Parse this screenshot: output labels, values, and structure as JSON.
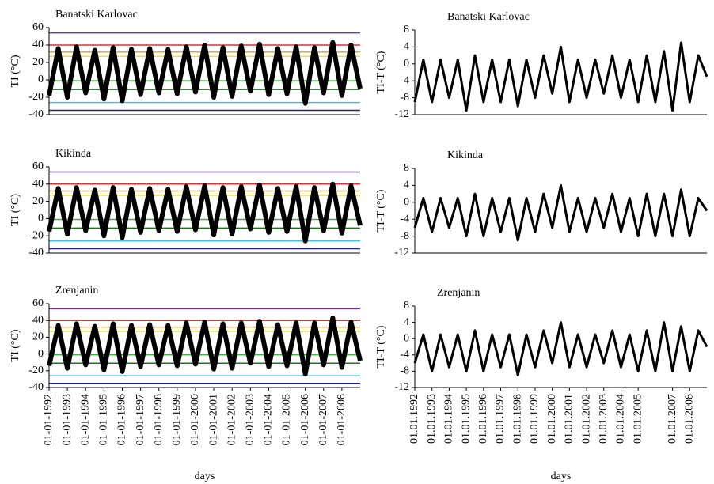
{
  "chart_data": [
    {
      "type": "line",
      "title": "Banatski Karlovac",
      "y_label": "TI (°C)",
      "x": [
        1992,
        1992.5,
        1993,
        1993.5,
        1994,
        1994.5,
        1995,
        1995.5,
        1996,
        1996.5,
        1997,
        1997.5,
        1998,
        1998.5,
        1999,
        1999.5,
        2000,
        2000.5,
        2001,
        2001.5,
        2002,
        2002.5,
        2003,
        2003.5,
        2004,
        2004.5,
        2005,
        2005.5,
        2006,
        2006.5,
        2007,
        2007.5,
        2008,
        2008.5,
        2009
      ],
      "series": [
        {
          "color": "#000000",
          "values": [
            -18,
            36,
            -20,
            38,
            -15,
            34,
            -22,
            37,
            -24,
            35,
            -17,
            36,
            -15,
            35,
            -16,
            38,
            -14,
            40,
            -20,
            37,
            -19,
            39,
            -13,
            41,
            -17,
            36,
            -16,
            38,
            -27,
            37,
            -15,
            43,
            -18,
            40,
            -10
          ]
        }
      ],
      "xlim": [
        1992,
        2009
      ],
      "ylim": [
        -40,
        60
      ],
      "yticks": [
        -40,
        -20,
        0,
        20,
        40,
        60
      ],
      "hlines": [
        {
          "value": 54,
          "color": "#7030a0"
        },
        {
          "value": 40,
          "color": "#e03030"
        },
        {
          "value": 32,
          "color": "#f0a030"
        },
        {
          "value": 27,
          "color": "#f0e040"
        },
        {
          "value": -1,
          "color": "#40b040"
        },
        {
          "value": -11,
          "color": "#207020"
        },
        {
          "value": -26,
          "color": "#40c0e0"
        },
        {
          "value": -35,
          "color": "#202080"
        }
      ]
    },
    {
      "type": "line",
      "title": "Banatski Karlovac",
      "y_label": "TI-T (°C)",
      "x": [
        1992,
        1992.5,
        1993,
        1993.5,
        1994,
        1994.5,
        1995,
        1995.5,
        1996,
        1996.5,
        1997,
        1997.5,
        1998,
        1998.5,
        1999,
        1999.5,
        2000,
        2000.5,
        2001,
        2001.5,
        2002,
        2002.5,
        2003,
        2003.5,
        2004,
        2004.5,
        2005,
        2005.5,
        2006,
        2006.5,
        2007,
        2007.5,
        2008,
        2008.5,
        2009
      ],
      "series": [
        {
          "color": "#000000",
          "values": [
            -9,
            1,
            -9,
            1,
            -8,
            1,
            -11,
            2,
            -9,
            1,
            -9,
            1,
            -10,
            1,
            -8,
            2,
            -7,
            4,
            -9,
            1,
            -8,
            1,
            -7,
            2,
            -8,
            1,
            -9,
            2,
            -9,
            3,
            -11,
            5,
            -9,
            2,
            -3
          ]
        }
      ],
      "xlim": [
        1992,
        2009
      ],
      "ylim": [
        -12,
        8
      ],
      "yticks": [
        -12,
        -8,
        -4,
        0,
        4,
        8
      ]
    },
    {
      "type": "line",
      "title": "Kikinda",
      "y_label": "TI (°C)",
      "x": [
        1992,
        1992.5,
        1993,
        1993.5,
        1994,
        1994.5,
        1995,
        1995.5,
        1996,
        1996.5,
        1997,
        1997.5,
        1998,
        1998.5,
        1999,
        1999.5,
        2000,
        2000.5,
        2001,
        2001.5,
        2002,
        2002.5,
        2003,
        2003.5,
        2004,
        2004.5,
        2005,
        2005.5,
        2006,
        2006.5,
        2007,
        2007.5,
        2008,
        2008.5,
        2009
      ],
      "series": [
        {
          "color": "#000000",
          "values": [
            -15,
            35,
            -18,
            36,
            -14,
            33,
            -20,
            36,
            -22,
            34,
            -16,
            35,
            -14,
            34,
            -15,
            37,
            -13,
            38,
            -19,
            36,
            -18,
            37,
            -12,
            39,
            -16,
            35,
            -15,
            37,
            -26,
            36,
            -14,
            40,
            -17,
            38,
            -8
          ]
        }
      ],
      "xlim": [
        1992,
        2009
      ],
      "ylim": [
        -40,
        60
      ],
      "yticks": [
        -40,
        -20,
        0,
        20,
        40,
        60
      ],
      "hlines": [
        {
          "value": 54,
          "color": "#7030a0"
        },
        {
          "value": 40,
          "color": "#e03030"
        },
        {
          "value": 32,
          "color": "#f0a030"
        },
        {
          "value": 27,
          "color": "#f0e040"
        },
        {
          "value": -1,
          "color": "#40b040"
        },
        {
          "value": -11,
          "color": "#207020"
        },
        {
          "value": -26,
          "color": "#40c0e0"
        },
        {
          "value": -35,
          "color": "#202080"
        }
      ]
    },
    {
      "type": "line",
      "title": "Kikinda",
      "y_label": "TI-T (°C)",
      "x": [
        1992,
        1992.5,
        1993,
        1993.5,
        1994,
        1994.5,
        1995,
        1995.5,
        1996,
        1996.5,
        1997,
        1997.5,
        1998,
        1998.5,
        1999,
        1999.5,
        2000,
        2000.5,
        2001,
        2001.5,
        2002,
        2002.5,
        2003,
        2003.5,
        2004,
        2004.5,
        2005,
        2005.5,
        2006,
        2006.5,
        2007,
        2007.5,
        2008,
        2008.5,
        2009
      ],
      "series": [
        {
          "color": "#000000",
          "values": [
            -6,
            1,
            -7,
            1,
            -6,
            1,
            -8,
            2,
            -8,
            1,
            -7,
            1,
            -9,
            1,
            -7,
            2,
            -6,
            4,
            -7,
            1,
            -7,
            1,
            -6,
            2,
            -7,
            1,
            -8,
            2,
            -8,
            2,
            -8,
            3,
            -8,
            1,
            -2
          ]
        }
      ],
      "xlim": [
        1992,
        2009
      ],
      "ylim": [
        -12,
        8
      ],
      "yticks": [
        -12,
        -8,
        -4,
        0,
        4,
        8
      ]
    },
    {
      "type": "line",
      "title": "Zrenjanin",
      "y_label": "TI (°C)",
      "x_label": "days",
      "x": [
        1992,
        1992.5,
        1993,
        1993.5,
        1994,
        1994.5,
        1995,
        1995.5,
        1996,
        1996.5,
        1997,
        1997.5,
        1998,
        1998.5,
        1999,
        1999.5,
        2000,
        2000.5,
        2001,
        2001.5,
        2002,
        2002.5,
        2003,
        2003.5,
        2004,
        2004.5,
        2005,
        2005.5,
        2006,
        2006.5,
        2007,
        2007.5,
        2008,
        2008.5,
        2009
      ],
      "series": [
        {
          "color": "#000000",
          "values": [
            -14,
            34,
            -17,
            36,
            -13,
            33,
            -19,
            36,
            -21,
            34,
            -15,
            35,
            -13,
            34,
            -14,
            37,
            -12,
            38,
            -18,
            36,
            -17,
            37,
            -11,
            39,
            -15,
            35,
            -14,
            37,
            -24,
            37,
            -13,
            43,
            -16,
            38,
            -8
          ]
        }
      ],
      "xlim": [
        1992,
        2009
      ],
      "ylim": [
        -40,
        60
      ],
      "yticks": [
        -40,
        -20,
        0,
        20,
        40,
        60
      ],
      "xticks": [
        {
          "value": 1992,
          "label": "01-01-1992"
        },
        {
          "value": 1993,
          "label": "01-01-1993"
        },
        {
          "value": 1994,
          "label": "01-01-1994"
        },
        {
          "value": 1995,
          "label": "01-01-1995"
        },
        {
          "value": 1996,
          "label": "01-01-1996"
        },
        {
          "value": 1997,
          "label": "01-01-1997"
        },
        {
          "value": 1998,
          "label": "01-01-1998"
        },
        {
          "value": 1999,
          "label": "01-01-1999"
        },
        {
          "value": 2000,
          "label": "01-01-2000"
        },
        {
          "value": 2001,
          "label": "01-01-2001"
        },
        {
          "value": 2002,
          "label": "01-01-2002"
        },
        {
          "value": 2003,
          "label": "01-01-2003"
        },
        {
          "value": 2004,
          "label": "01-01-2004"
        },
        {
          "value": 2005,
          "label": "01-01-2005"
        },
        {
          "value": 2006,
          "label": "01-01-2006"
        },
        {
          "value": 2007,
          "label": "01-01-2007"
        },
        {
          "value": 2008,
          "label": "01-01-2008"
        }
      ],
      "hlines": [
        {
          "value": 54,
          "color": "#7030a0"
        },
        {
          "value": 40,
          "color": "#e03030"
        },
        {
          "value": 32,
          "color": "#f0a030"
        },
        {
          "value": 27,
          "color": "#f0e040"
        },
        {
          "value": -1,
          "color": "#40b040"
        },
        {
          "value": -11,
          "color": "#207020"
        },
        {
          "value": -26,
          "color": "#40c0e0"
        },
        {
          "value": -35,
          "color": "#202080"
        }
      ]
    },
    {
      "type": "line",
      "title": "Zrenjanin",
      "y_label": "TI-T (°C)",
      "x_label": "days",
      "x": [
        1992,
        1992.5,
        1993,
        1993.5,
        1994,
        1994.5,
        1995,
        1995.5,
        1996,
        1996.5,
        1997,
        1997.5,
        1998,
        1998.5,
        1999,
        1999.5,
        2000,
        2000.5,
        2001,
        2001.5,
        2002,
        2002.5,
        2003,
        2003.5,
        2004,
        2004.5,
        2005,
        2005.5,
        2006,
        2006.5,
        2007,
        2007.5,
        2008,
        2008.5,
        2009
      ],
      "series": [
        {
          "color": "#000000",
          "values": [
            -6,
            1,
            -8,
            1,
            -7,
            1,
            -8,
            2,
            -8,
            1,
            -7,
            1,
            -9,
            1,
            -7,
            2,
            -6,
            4,
            -7,
            1,
            -7,
            1,
            -6,
            2,
            -7,
            1,
            -8,
            2,
            -8,
            4,
            -8,
            3,
            -8,
            2,
            -2
          ]
        }
      ],
      "xlim": [
        1992,
        2009
      ],
      "ylim": [
        -12,
        8
      ],
      "yticks": [
        -12,
        -8,
        -4,
        0,
        4,
        8
      ],
      "xticks": [
        {
          "value": 1992,
          "label": "01.01.1992"
        },
        {
          "value": 1993,
          "label": "01.01.1993"
        },
        {
          "value": 1994,
          "label": "01.01.1994"
        },
        {
          "value": 1995,
          "label": "01.01.1995"
        },
        {
          "value": 1996,
          "label": "01.01.1996"
        },
        {
          "value": 1997,
          "label": "01.01.1997"
        },
        {
          "value": 1998,
          "label": "01.01.1998"
        },
        {
          "value": 1999,
          "label": "01.01.1999"
        },
        {
          "value": 2000,
          "label": "01.01.2000"
        },
        {
          "value": 2001,
          "label": "01.01.2001"
        },
        {
          "value": 2002,
          "label": "01.01.2002"
        },
        {
          "value": 2003,
          "label": "01.01.2003"
        },
        {
          "value": 2004,
          "label": "01.01.2004"
        },
        {
          "value": 2005,
          "label": "01.01.2005"
        },
        {
          "value": 2007,
          "label": "01.01.2007"
        },
        {
          "value": 2008,
          "label": "01.01.2008"
        }
      ]
    }
  ]
}
